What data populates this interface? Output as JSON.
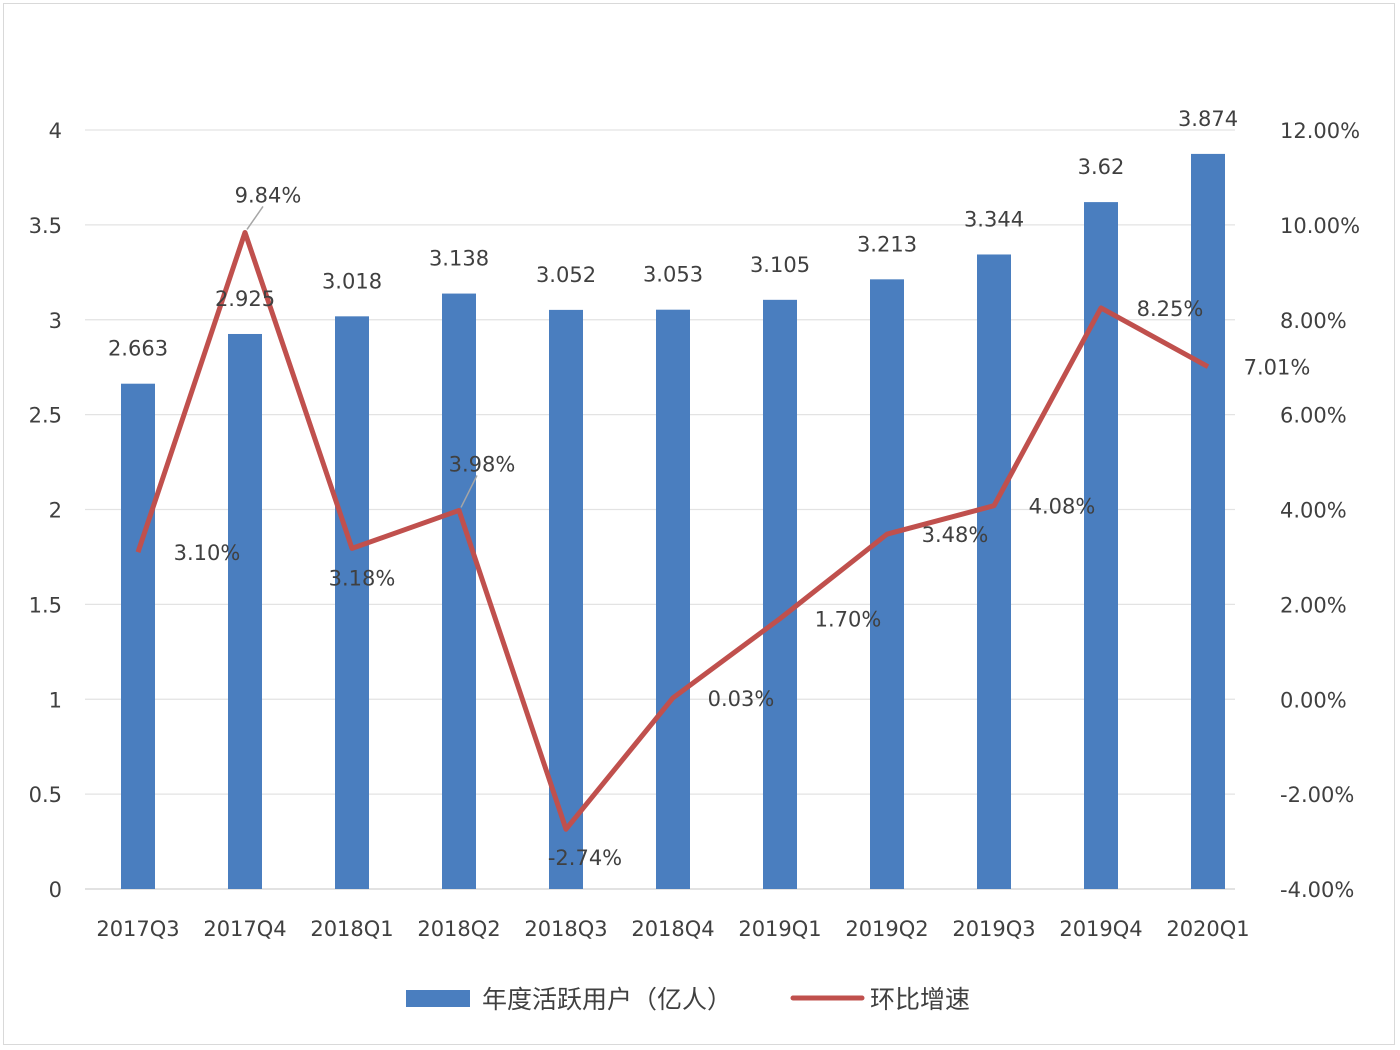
{
  "chart_data": {
    "type": "bar+line",
    "title": "",
    "categories": [
      "2017Q3",
      "2017Q4",
      "2018Q1",
      "2018Q2",
      "2018Q3",
      "2018Q4",
      "2019Q1",
      "2019Q2",
      "2019Q3",
      "2019Q4",
      "2020Q1"
    ],
    "series": [
      {
        "name": "年度活跃用户（亿人）",
        "type": "bar",
        "axis": "left",
        "color": "#4a7ebf",
        "values": [
          2.663,
          2.925,
          3.018,
          3.138,
          3.052,
          3.053,
          3.105,
          3.213,
          3.344,
          3.62,
          3.874
        ],
        "labels": [
          "2.663",
          "2.925",
          "3.018",
          "3.138",
          "3.052",
          "3.053",
          "3.105",
          "3.213",
          "3.344",
          "3.62",
          "3.874"
        ]
      },
      {
        "name": "环比增速",
        "type": "line",
        "axis": "right",
        "color": "#c0504d",
        "values": [
          3.1,
          9.84,
          3.18,
          3.98,
          -2.74,
          0.03,
          1.7,
          3.48,
          4.08,
          8.25,
          7.01
        ],
        "labels": [
          "3.10%",
          "9.84%",
          "3.18%",
          "3.98%",
          "-2.74%",
          "0.03%",
          "1.70%",
          "3.48%",
          "4.08%",
          "8.25%",
          "7.01%"
        ]
      }
    ],
    "y_left": {
      "range": [
        0,
        4
      ],
      "ticks": [
        "0",
        "0.5",
        "1",
        "1.5",
        "2",
        "2.5",
        "3",
        "3.5",
        "4"
      ]
    },
    "y_right": {
      "range": [
        -4,
        12
      ],
      "unit": "%",
      "ticks": [
        "-4.00%",
        "-2.00%",
        "0.00%",
        "2.00%",
        "4.00%",
        "6.00%",
        "8.00%",
        "10.00%",
        "12.00%"
      ]
    },
    "grid": true,
    "legend": {
      "position": "bottom",
      "items": [
        "年度活跃用户（亿人）",
        "环比增速"
      ]
    }
  }
}
